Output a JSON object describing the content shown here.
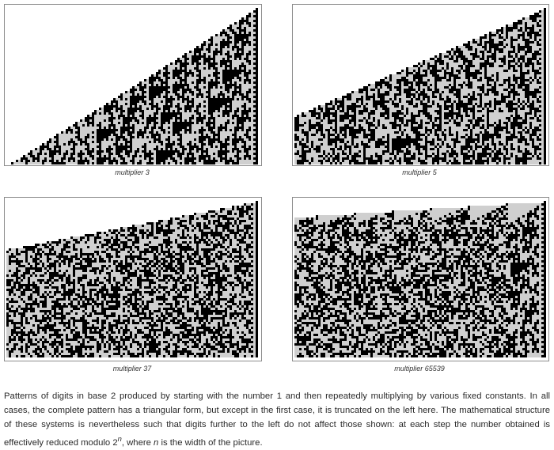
{
  "figures": [
    {
      "caption": "multiplier 3",
      "multiplier": 3
    },
    {
      "caption": "multiplier 5",
      "multiplier": 5
    },
    {
      "caption": "multiplier 37",
      "multiplier": 37
    },
    {
      "caption": "multiplier 65539",
      "multiplier": 65539
    }
  ],
  "colors": {
    "one": "#000000",
    "zero": "#cfcfcf",
    "background": "#ffffff",
    "frame": "#8c8c8c"
  },
  "caption": {
    "text_before_power": "Patterns of digits in base 2 produced by starting with the number 1 and then repeatedly multiplying by various fixed constants. In all cases, the complete pattern has a triangular form, but except in the first case, it is truncated on the left here. The mathematical structure of these systems is nevertheless such that digits further to the left do not affect those shown: at each step the number obtained is effectively reduced modulo ",
    "power_base": "2",
    "power_exponent": "n",
    "text_after_power": ", where ",
    "n_symbol": "n",
    "text_end": " is the width of the picture."
  }
}
